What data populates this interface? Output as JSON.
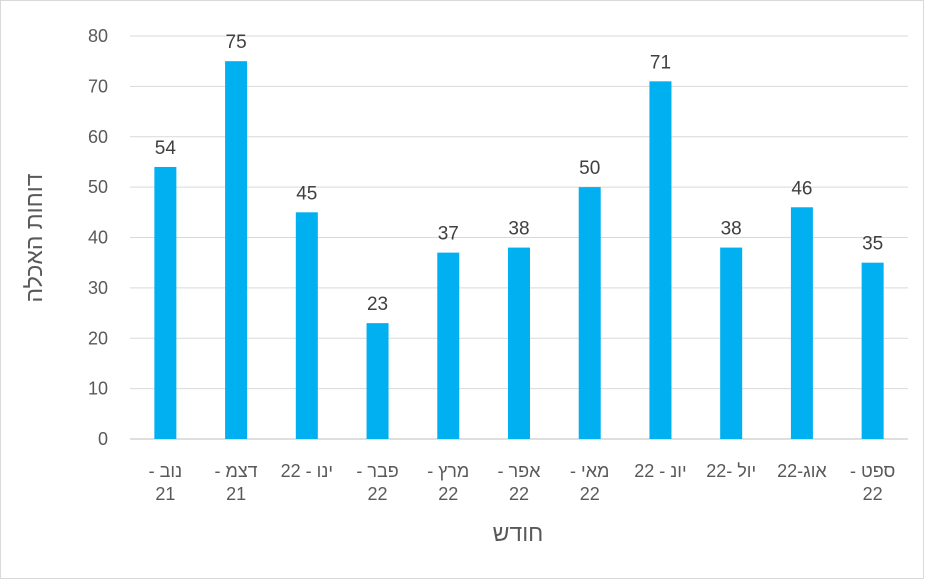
{
  "chart_data": {
    "type": "bar",
    "categories": [
      [
        "נוב -",
        "21"
      ],
      [
        "דצמ -",
        "21"
      ],
      [
        "ינו - 22",
        ""
      ],
      [
        "פבר -",
        "22"
      ],
      [
        "מרץ -",
        "22"
      ],
      [
        "אפר -",
        "22"
      ],
      [
        "מאי -",
        "22"
      ],
      [
        "יונ - 22",
        ""
      ],
      [
        "יול -22",
        ""
      ],
      [
        "אוג-22",
        ""
      ],
      [
        "ספט -",
        "22"
      ]
    ],
    "values": [
      54,
      75,
      45,
      23,
      37,
      38,
      50,
      71,
      38,
      46,
      35
    ],
    "data_labels": [
      "54",
      "75",
      "45",
      "23",
      "37",
      "38",
      "50",
      "71",
      "38",
      "46",
      "35"
    ],
    "xlabel": "חודש",
    "ylabel": "דוחות האכלה",
    "ylim": [
      0,
      80
    ],
    "yticks": [
      0,
      10,
      20,
      30,
      40,
      50,
      60,
      70,
      80
    ],
    "grid": true,
    "legend": "none",
    "colors": {
      "bar": "#00b0f0",
      "grid": "#d9d9d9",
      "axis": "#bfbfbf",
      "text": "#595959"
    }
  }
}
